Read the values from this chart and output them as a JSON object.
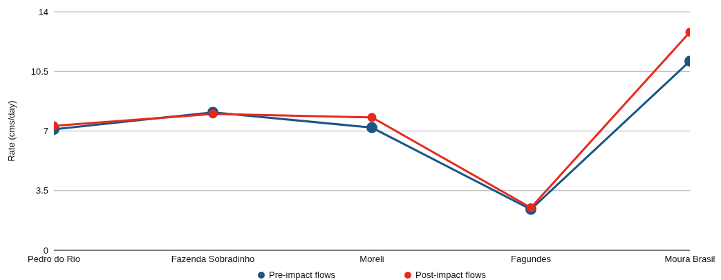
{
  "chart_data": {
    "type": "line",
    "ylabel": "Rate (cms/day)",
    "categories": [
      "Pedro do Rio",
      "Fazenda Sobradinho",
      "Moreli",
      "Fagundes",
      "Moura Brasil"
    ],
    "series": [
      {
        "name": "Pre-impact flows",
        "color": "#1b5684",
        "values": [
          7.1,
          8.1,
          7.2,
          2.4,
          11.1
        ]
      },
      {
        "name": "Post-impact flows",
        "color": "#e8291c",
        "values": [
          7.3,
          8.0,
          7.8,
          2.5,
          12.8
        ]
      }
    ],
    "ylim": [
      0,
      14
    ],
    "yticks": [
      0,
      3.5,
      7,
      10.5,
      14
    ],
    "grid": "y",
    "legend": "bottom",
    "marker": "circle",
    "line_style": "solid"
  }
}
